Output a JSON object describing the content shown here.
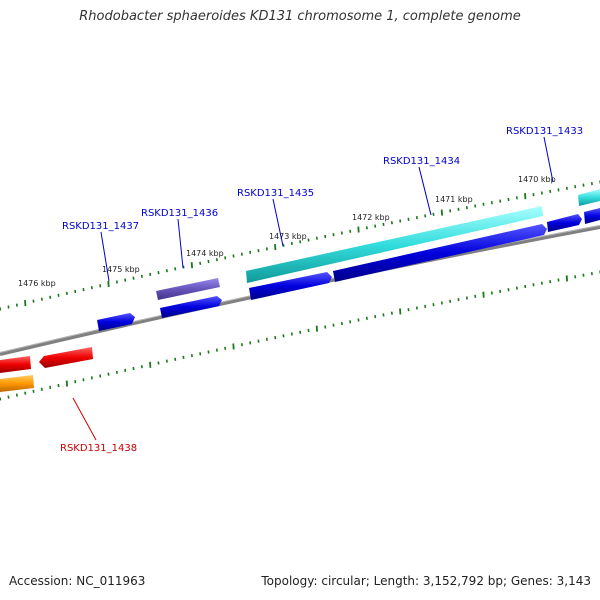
{
  "title": "Rhodobacter sphaeroides KD131 chromosome 1, complete genome",
  "footer": {
    "accession": "Accession: NC_011963",
    "summary": "Topology: circular; Length: 3,152,792 bp; Genes: 3,143"
  },
  "kbp_labels": [
    "1476 kbp",
    "1475 kbp",
    "1474 kbp",
    "1473 kbp",
    "1472 kbp",
    "1471 kbp",
    "1470 kbp"
  ],
  "gene_labels": [
    {
      "text": "RSKD131_1433",
      "color": "#0000cc"
    },
    {
      "text": "RSKD131_1434",
      "color": "#0000cc"
    },
    {
      "text": "RSKD131_1435",
      "color": "#0000cc"
    },
    {
      "text": "RSKD131_1436",
      "color": "#0000cc"
    },
    {
      "text": "RSKD131_1437",
      "color": "#0000cc"
    },
    {
      "text": "RSKD131_1438",
      "color": "#cc0000"
    }
  ],
  "colors": {
    "backbone": "#808080",
    "ticks": "#1a7a1a",
    "cds_blue": "#0000dd",
    "cds_cyan": "#33dddd",
    "cds_purple": "#6655bb",
    "cds_red": "#ee0000",
    "cds_orange": "#ff9900"
  }
}
